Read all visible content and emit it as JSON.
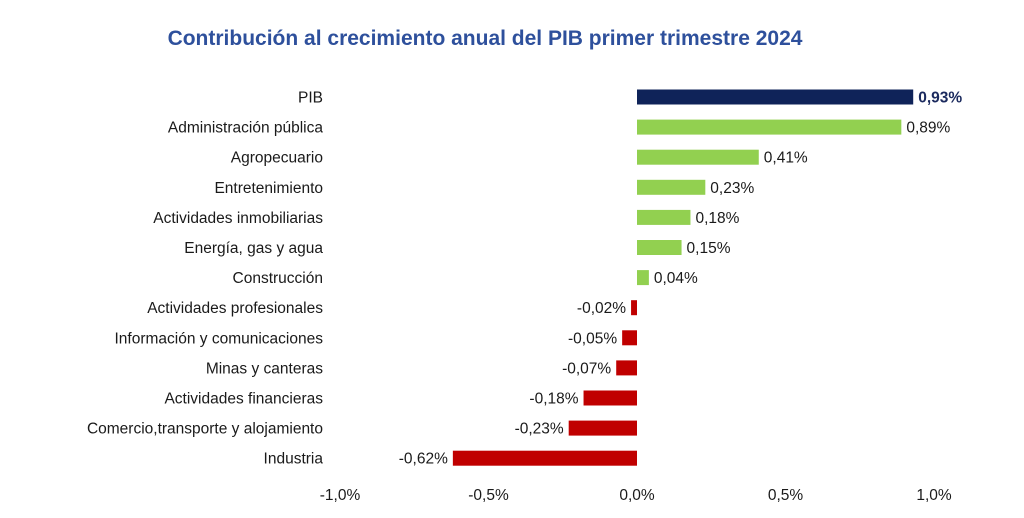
{
  "chart_data": {
    "type": "bar",
    "orientation": "horizontal",
    "title": "Contribución al crecimiento anual del PIB primer trimestre 2024",
    "categories": [
      "PIB",
      "Administración pública",
      "Agropecuario",
      "Entretenimiento",
      "Actividades inmobiliarias",
      "Energía, gas y agua",
      "Construcción",
      "Actividades profesionales",
      "Información y comunicaciones",
      "Minas y canteras",
      "Actividades financieras",
      "Comercio,transporte y alojamiento",
      "Industria"
    ],
    "values": [
      0.93,
      0.89,
      0.41,
      0.23,
      0.18,
      0.15,
      0.04,
      -0.02,
      -0.05,
      -0.07,
      -0.18,
      -0.23,
      -0.62
    ],
    "value_labels": [
      "0,93%",
      "0,89%",
      "0,41%",
      "0,23%",
      "0,18%",
      "0,15%",
      "0,04%",
      "-0,02%",
      "-0,05%",
      "-0,07%",
      "-0,18%",
      "-0,23%",
      "-0,62%"
    ],
    "xlim": [
      -1.0,
      1.0
    ],
    "x_ticks": [
      -1.0,
      -0.5,
      0.0,
      0.5,
      1.0
    ],
    "x_tick_labels": [
      "-1,0%",
      "-0,5%",
      "0,0%",
      "0,5%",
      "1,0%"
    ],
    "grid": false,
    "colors": {
      "total": "#0f2359",
      "positive": "#92d050",
      "negative": "#c00000",
      "title": "#2e509c"
    }
  }
}
